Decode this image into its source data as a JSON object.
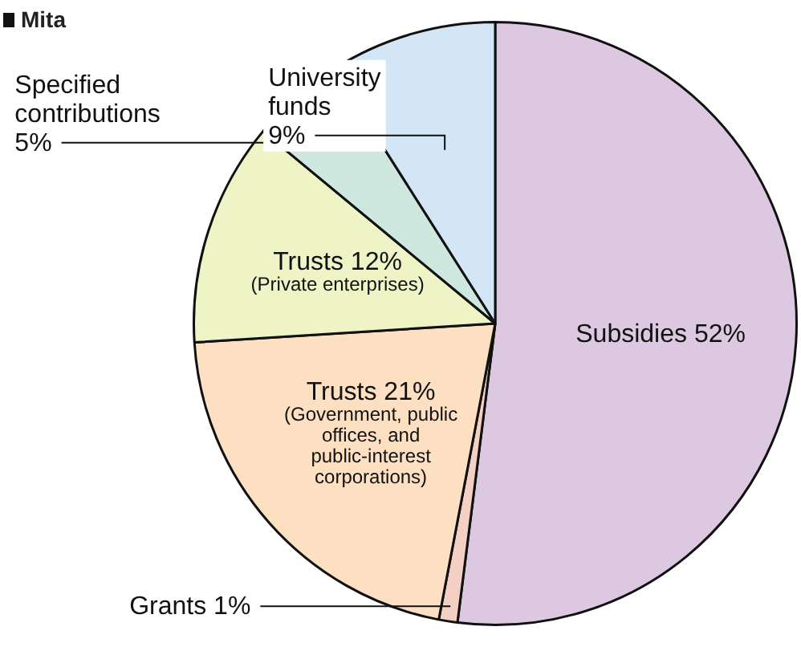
{
  "chart_data": {
    "type": "pie",
    "title": "Mita",
    "categories": [
      "Subsidies",
      "Grants",
      "Trusts (Government, public offices, and public-interest corporations)",
      "Trusts (Private enterprises)",
      "Specified contributions",
      "University funds"
    ],
    "values": [
      52,
      1,
      21,
      12,
      5,
      9
    ],
    "value_labels": [
      "52%",
      "1%",
      "21%",
      "12%",
      "5%",
      "9%"
    ],
    "colors": [
      "#dcc9e1",
      "#f3cfc4",
      "#fde0c2",
      "#eef4c6",
      "#cfe8df",
      "#d3e6f5"
    ],
    "legend": false
  }
}
